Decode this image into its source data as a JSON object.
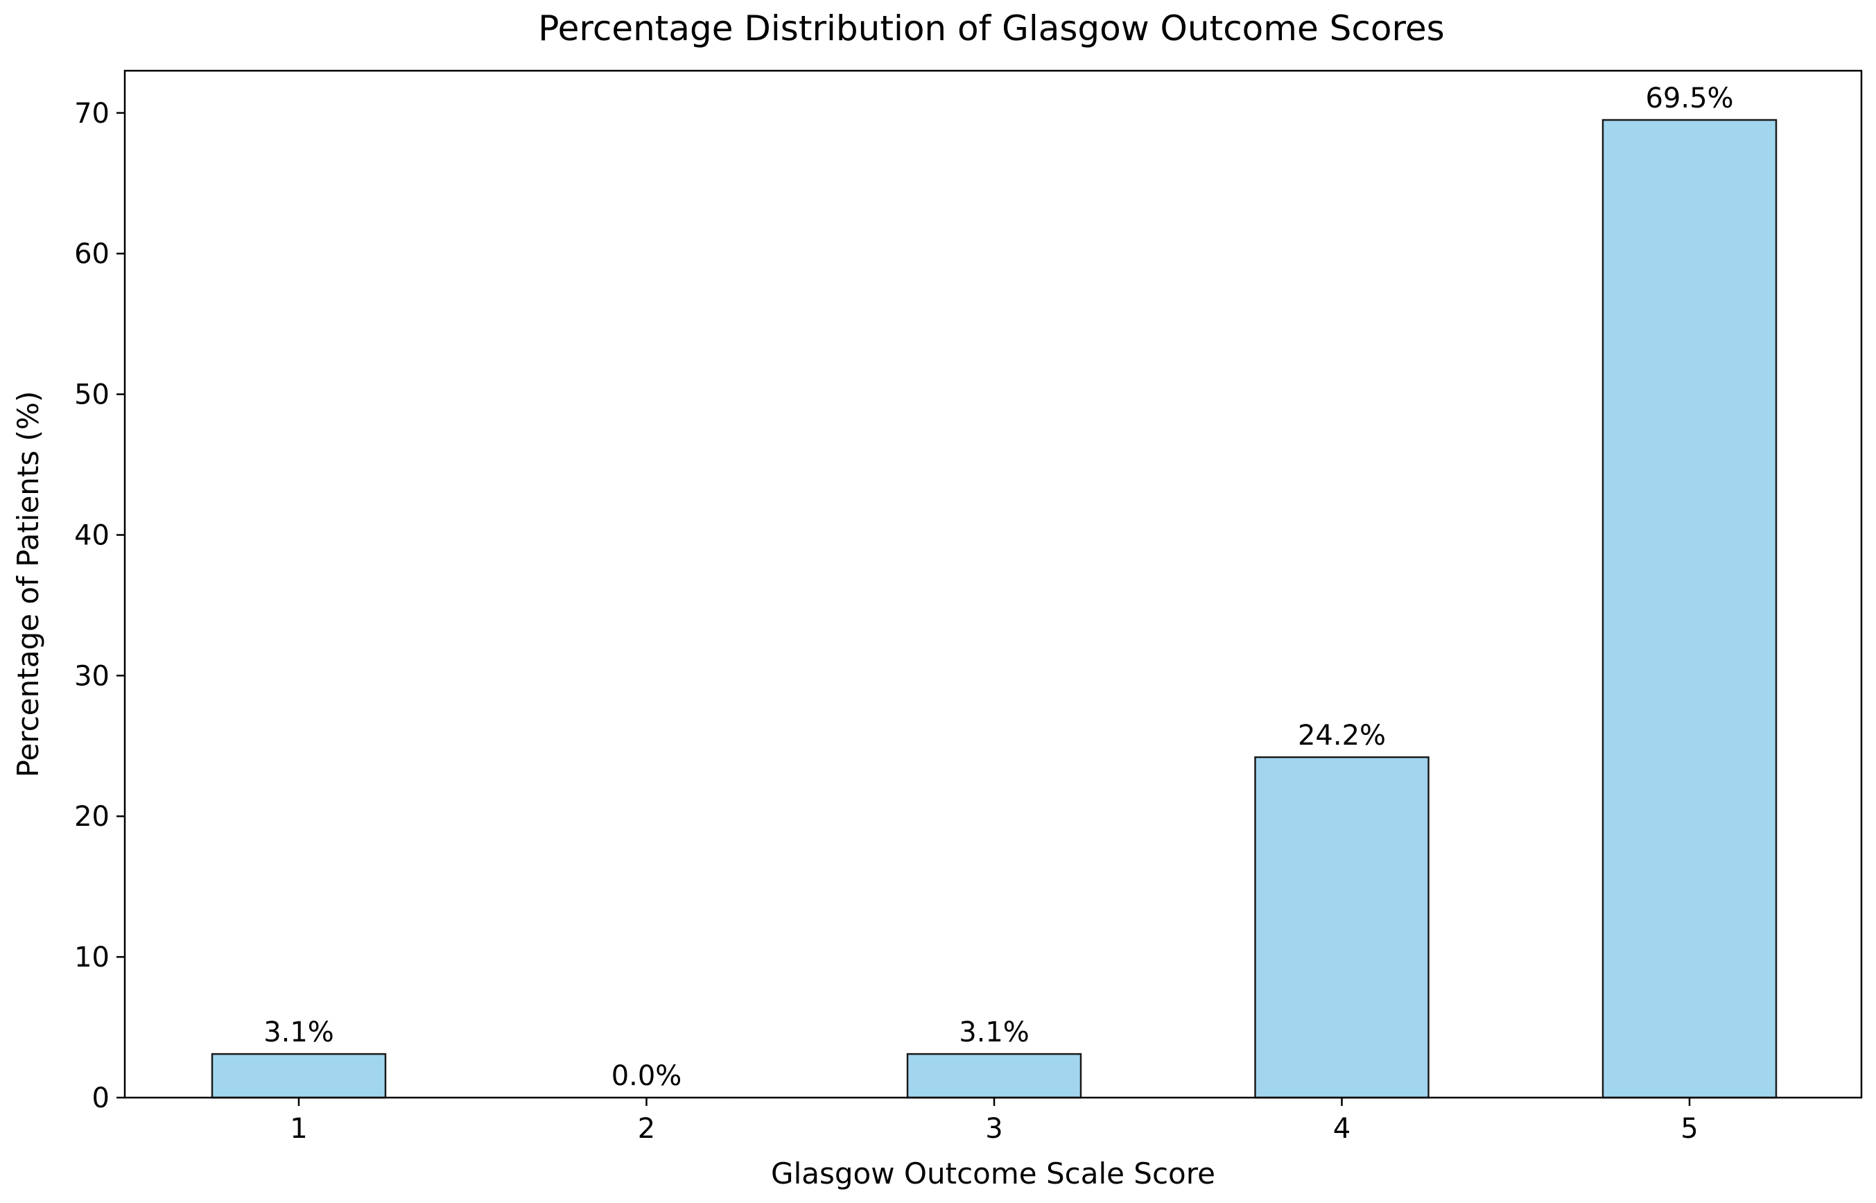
{
  "chart_data": {
    "type": "bar",
    "title": "Percentage Distribution of Glasgow Outcome Scores",
    "xlabel": "Glasgow Outcome Scale Score",
    "ylabel": "Percentage of Patients (%)",
    "categories": [
      "1",
      "2",
      "3",
      "4",
      "5"
    ],
    "values": [
      3.1,
      0.0,
      3.1,
      24.2,
      69.5
    ],
    "value_labels": [
      "3.1%",
      "0.0%",
      "3.1%",
      "24.2%",
      "69.5%"
    ],
    "yticks": [
      0,
      10,
      20,
      30,
      40,
      50,
      60,
      70
    ],
    "ylim": [
      0,
      73
    ],
    "grid": false,
    "bar_color": "#a1d6ee",
    "bar_edge_color": "#1a1a1a"
  }
}
